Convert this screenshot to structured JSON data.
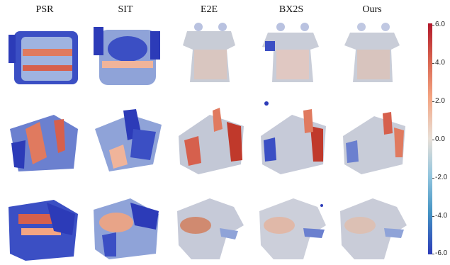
{
  "columns": [
    "PSR",
    "SIT",
    "E2E",
    "BX2S",
    "Ours"
  ],
  "colorbar": {
    "ticks": [
      "6.0",
      "4.0",
      "2.0",
      "0.0",
      "-2.0",
      "-4.0",
      "-6.0"
    ],
    "colors": [
      "#b2182b",
      "#f4a582",
      "#e8e0d8",
      "#92c5de",
      "#2c3bb8"
    ]
  }
}
